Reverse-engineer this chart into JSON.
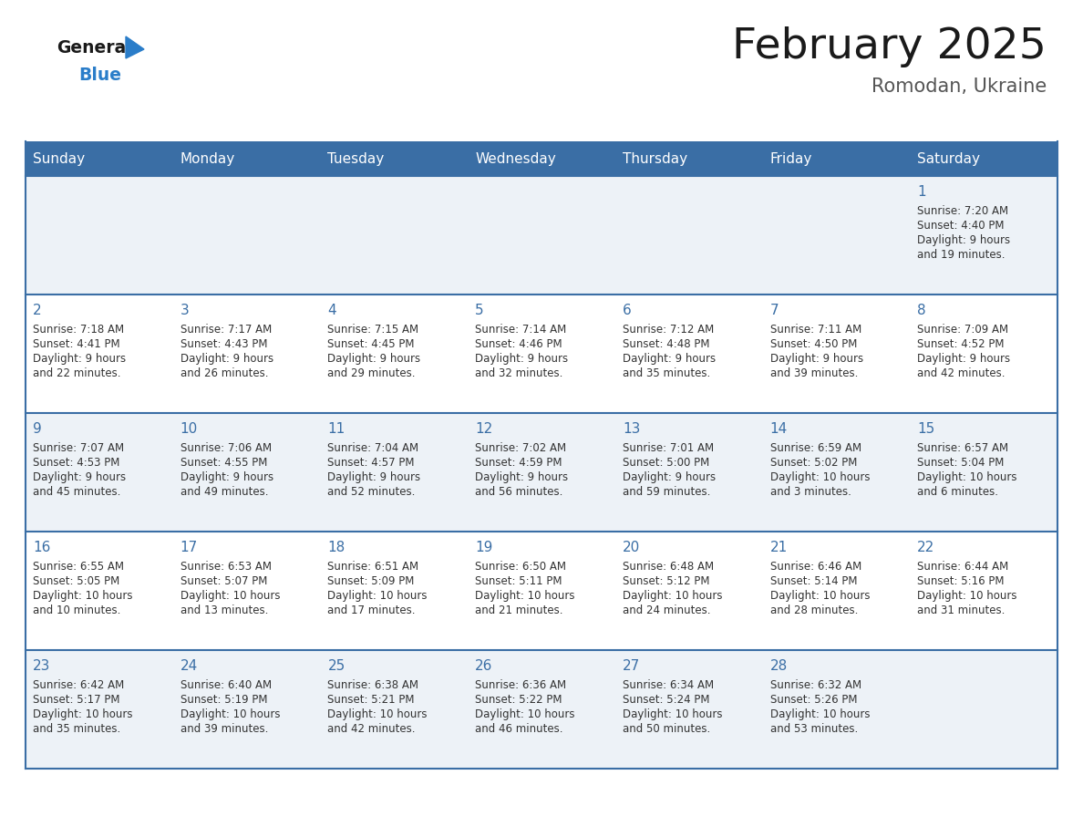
{
  "title": "February 2025",
  "subtitle": "Romodan, Ukraine",
  "days_of_week": [
    "Sunday",
    "Monday",
    "Tuesday",
    "Wednesday",
    "Thursday",
    "Friday",
    "Saturday"
  ],
  "header_bg": "#3a6ea5",
  "header_text_color": "#ffffff",
  "cell_bg_odd": "#edf2f7",
  "cell_bg_even": "#ffffff",
  "day_number_color": "#3a6ea5",
  "text_color": "#333333",
  "border_color": "#3a6ea5",
  "logo_general_color": "#1a1a1a",
  "logo_blue_color": "#2a7dc9",
  "logo_triangle_color": "#2a7dc9",
  "title_color": "#1a1a1a",
  "subtitle_color": "#555555",
  "calendar_data": [
    [
      null,
      null,
      null,
      null,
      null,
      null,
      {
        "day": 1,
        "sunrise": "7:20 AM",
        "sunset": "4:40 PM",
        "daylight": "9 hours and 19 minutes."
      }
    ],
    [
      {
        "day": 2,
        "sunrise": "7:18 AM",
        "sunset": "4:41 PM",
        "daylight": "9 hours and 22 minutes."
      },
      {
        "day": 3,
        "sunrise": "7:17 AM",
        "sunset": "4:43 PM",
        "daylight": "9 hours and 26 minutes."
      },
      {
        "day": 4,
        "sunrise": "7:15 AM",
        "sunset": "4:45 PM",
        "daylight": "9 hours and 29 minutes."
      },
      {
        "day": 5,
        "sunrise": "7:14 AM",
        "sunset": "4:46 PM",
        "daylight": "9 hours and 32 minutes."
      },
      {
        "day": 6,
        "sunrise": "7:12 AM",
        "sunset": "4:48 PM",
        "daylight": "9 hours and 35 minutes."
      },
      {
        "day": 7,
        "sunrise": "7:11 AM",
        "sunset": "4:50 PM",
        "daylight": "9 hours and 39 minutes."
      },
      {
        "day": 8,
        "sunrise": "7:09 AM",
        "sunset": "4:52 PM",
        "daylight": "9 hours and 42 minutes."
      }
    ],
    [
      {
        "day": 9,
        "sunrise": "7:07 AM",
        "sunset": "4:53 PM",
        "daylight": "9 hours and 45 minutes."
      },
      {
        "day": 10,
        "sunrise": "7:06 AM",
        "sunset": "4:55 PM",
        "daylight": "9 hours and 49 minutes."
      },
      {
        "day": 11,
        "sunrise": "7:04 AM",
        "sunset": "4:57 PM",
        "daylight": "9 hours and 52 minutes."
      },
      {
        "day": 12,
        "sunrise": "7:02 AM",
        "sunset": "4:59 PM",
        "daylight": "9 hours and 56 minutes."
      },
      {
        "day": 13,
        "sunrise": "7:01 AM",
        "sunset": "5:00 PM",
        "daylight": "9 hours and 59 minutes."
      },
      {
        "day": 14,
        "sunrise": "6:59 AM",
        "sunset": "5:02 PM",
        "daylight": "10 hours and 3 minutes."
      },
      {
        "day": 15,
        "sunrise": "6:57 AM",
        "sunset": "5:04 PM",
        "daylight": "10 hours and 6 minutes."
      }
    ],
    [
      {
        "day": 16,
        "sunrise": "6:55 AM",
        "sunset": "5:05 PM",
        "daylight": "10 hours and 10 minutes."
      },
      {
        "day": 17,
        "sunrise": "6:53 AM",
        "sunset": "5:07 PM",
        "daylight": "10 hours and 13 minutes."
      },
      {
        "day": 18,
        "sunrise": "6:51 AM",
        "sunset": "5:09 PM",
        "daylight": "10 hours and 17 minutes."
      },
      {
        "day": 19,
        "sunrise": "6:50 AM",
        "sunset": "5:11 PM",
        "daylight": "10 hours and 21 minutes."
      },
      {
        "day": 20,
        "sunrise": "6:48 AM",
        "sunset": "5:12 PM",
        "daylight": "10 hours and 24 minutes."
      },
      {
        "day": 21,
        "sunrise": "6:46 AM",
        "sunset": "5:14 PM",
        "daylight": "10 hours and 28 minutes."
      },
      {
        "day": 22,
        "sunrise": "6:44 AM",
        "sunset": "5:16 PM",
        "daylight": "10 hours and 31 minutes."
      }
    ],
    [
      {
        "day": 23,
        "sunrise": "6:42 AM",
        "sunset": "5:17 PM",
        "daylight": "10 hours and 35 minutes."
      },
      {
        "day": 24,
        "sunrise": "6:40 AM",
        "sunset": "5:19 PM",
        "daylight": "10 hours and 39 minutes."
      },
      {
        "day": 25,
        "sunrise": "6:38 AM",
        "sunset": "5:21 PM",
        "daylight": "10 hours and 42 minutes."
      },
      {
        "day": 26,
        "sunrise": "6:36 AM",
        "sunset": "5:22 PM",
        "daylight": "10 hours and 46 minutes."
      },
      {
        "day": 27,
        "sunrise": "6:34 AM",
        "sunset": "5:24 PM",
        "daylight": "10 hours and 50 minutes."
      },
      {
        "day": 28,
        "sunrise": "6:32 AM",
        "sunset": "5:26 PM",
        "daylight": "10 hours and 53 minutes."
      },
      null
    ]
  ]
}
